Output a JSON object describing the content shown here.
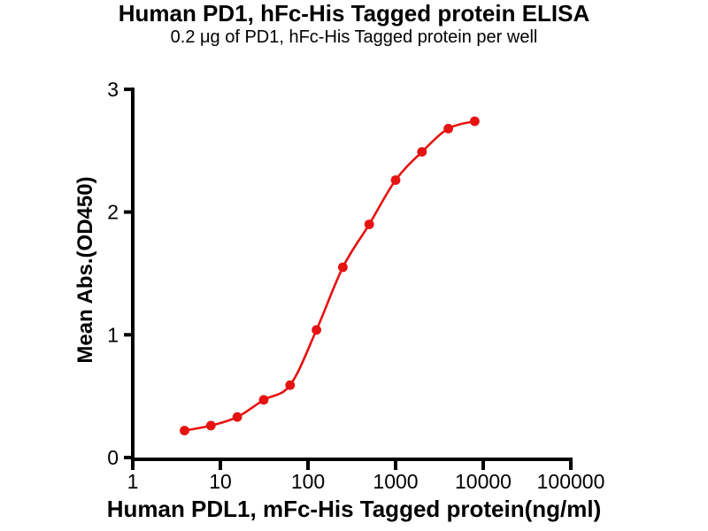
{
  "chart_data": {
    "type": "scatter",
    "curve": "sigmoidal_dose_response_fit",
    "title": "Human PD1, hFc-His Tagged protein ELISA",
    "subtitle": "0.2 μg of PD1, hFc-His Tagged protein per well",
    "xlabel": "Human PDL1, mFc-His Tagged protein(ng/ml)",
    "ylabel": "Mean Abs.(OD450)",
    "x_scale": "log10",
    "xlim": [
      1,
      100000
    ],
    "ylim": [
      0,
      3
    ],
    "grid": false,
    "legend_position": "none",
    "x_ticks": [
      1,
      10,
      100,
      1000,
      10000,
      100000
    ],
    "x_tick_labels": [
      "1",
      "10",
      "100",
      "1000",
      "10000",
      "100000"
    ],
    "y_ticks": [
      0,
      1,
      2,
      3
    ],
    "y_tick_labels": [
      "0",
      "1",
      "2",
      "3"
    ],
    "series": [
      {
        "x_ng_ml": [
          3.9,
          7.8,
          15.6,
          31.25,
          62.5,
          125,
          250,
          500,
          1000,
          2000,
          4000,
          8000
        ],
        "y_od450": [
          0.22,
          0.26,
          0.33,
          0.47,
          0.59,
          1.04,
          1.55,
          1.9,
          2.26,
          2.49,
          2.68,
          2.74
        ]
      }
    ],
    "colors": {
      "marker": "#e51311",
      "line": "#e51311",
      "axis": "#000000",
      "text": "#000000",
      "background": "#ffffff"
    }
  }
}
